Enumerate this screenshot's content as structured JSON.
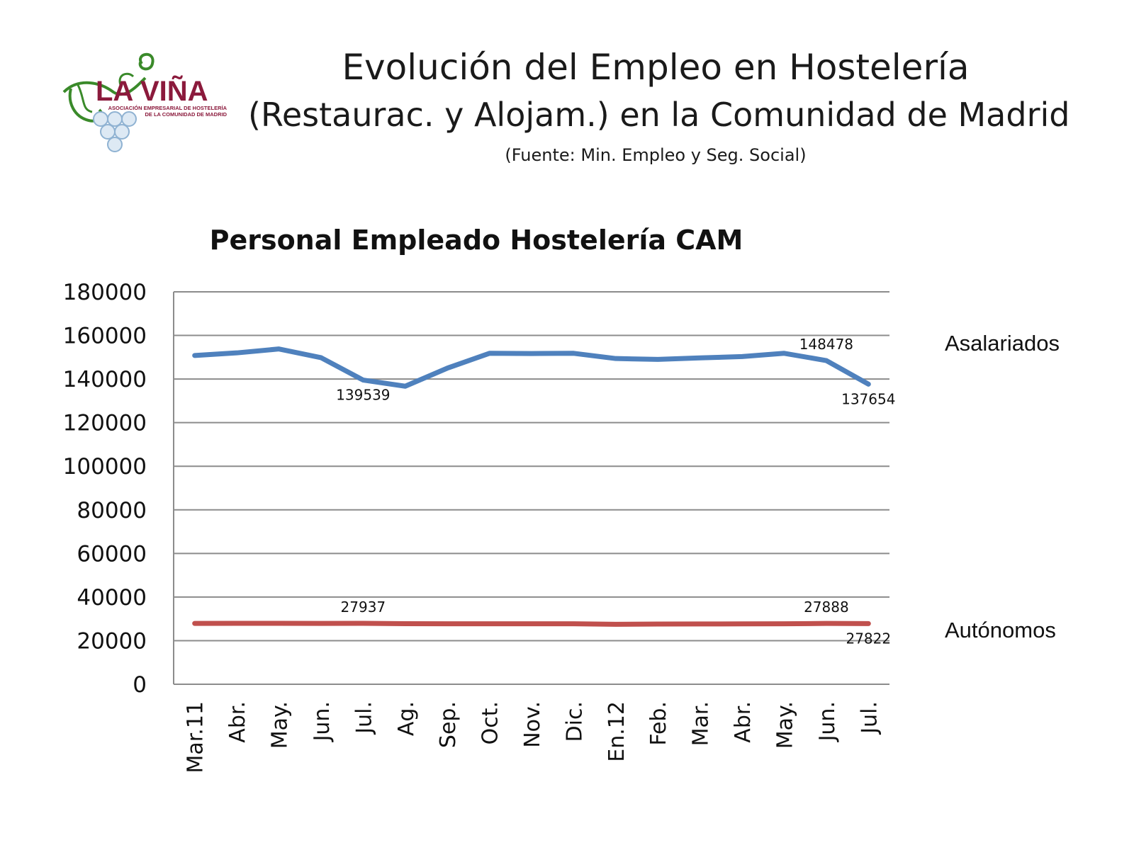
{
  "header": {
    "title": "Evolución del Empleo en Hostelería",
    "subtitle": "(Restaurac. y Alojam.) en la Comunidad de Madrid",
    "source": "(Fuente: Min. Empleo y Seg. Social)"
  },
  "logo": {
    "name": "LA VIÑA",
    "tagline_1": "ASOCIACIÓN EMPRESARIAL DE HOSTELERÍA",
    "tagline_2": "DE LA COMUNIDAD DE MADRID",
    "colors": {
      "text": "#8b1a3c",
      "vine": "#3a8a2a",
      "grapes": "#cfe0ee"
    }
  },
  "chart_data": {
    "type": "line",
    "title": "Personal Empleado Hostelería CAM",
    "xlabel": "",
    "ylabel": "",
    "ylim": [
      0,
      180000
    ],
    "yticks": [
      0,
      20000,
      40000,
      60000,
      80000,
      100000,
      120000,
      140000,
      160000,
      180000
    ],
    "grid": true,
    "legend": "right, series names beside line ends",
    "categories": [
      "Mar.11",
      "Abr.",
      "May.",
      "Jun.",
      "Jul.",
      "Ag.",
      "Sep.",
      "Oct.",
      "Nov.",
      "Dic.",
      "En.12",
      "Feb.",
      "Mar.",
      "Abr.",
      "May.",
      "Jun.",
      "Jul."
    ],
    "series": [
      {
        "name": "Asalariados",
        "color": "#4f81bd",
        "values": [
          150800,
          152000,
          153800,
          149800,
          139539,
          136700,
          145000,
          151800,
          151700,
          151800,
          149400,
          149000,
          149700,
          150300,
          151800,
          148478,
          137654
        ],
        "labels": [
          {
            "index": 4,
            "text": "139539",
            "position": "below"
          },
          {
            "index": 15,
            "text": "148478",
            "position": "above"
          },
          {
            "index": 16,
            "text": "137654",
            "position": "below"
          }
        ]
      },
      {
        "name": "Autónomos",
        "color": "#c0504d",
        "values": [
          27900,
          27950,
          27950,
          27900,
          27937,
          27800,
          27750,
          27750,
          27750,
          27750,
          27500,
          27600,
          27650,
          27700,
          27750,
          27888,
          27822
        ],
        "labels": [
          {
            "index": 4,
            "text": "27937",
            "position": "above"
          },
          {
            "index": 15,
            "text": "27888",
            "position": "above"
          },
          {
            "index": 16,
            "text": "27822",
            "position": "below"
          }
        ]
      }
    ]
  }
}
